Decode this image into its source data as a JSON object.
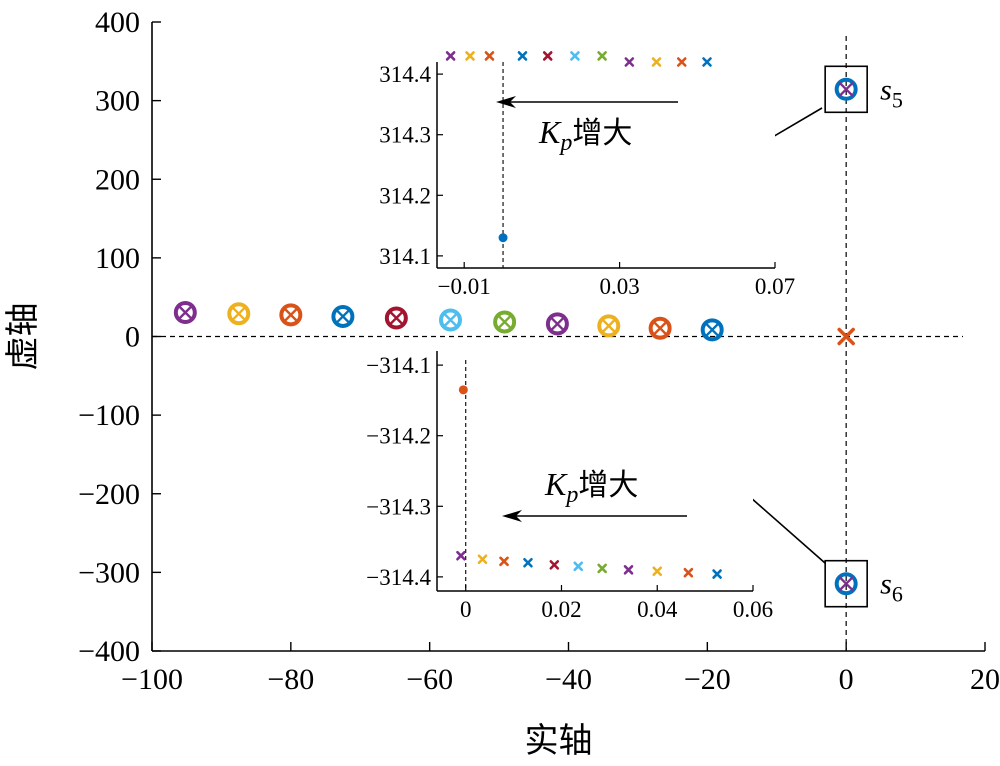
{
  "chart_data": [
    {
      "type": "scatter",
      "xlabel": "实轴",
      "ylabel": "虚轴",
      "xlim": [
        -100,
        20
      ],
      "ylim": [
        -400,
        400
      ],
      "xticks": [
        -100,
        -80,
        -60,
        -40,
        -20,
        0,
        20
      ],
      "xtick_labels": [
        "−100",
        "−80",
        "−60",
        "−40",
        "−20",
        "0",
        "20"
      ],
      "yticks": [
        -400,
        -300,
        -200,
        -100,
        0,
        100,
        200,
        300,
        400
      ],
      "ytick_labels": [
        "−400",
        "−300",
        "−200",
        "−100",
        "0",
        "100",
        "200",
        "300",
        "400"
      ],
      "reference_lines": {
        "x": 0,
        "y": 0
      },
      "points": [
        {
          "x": -95.2,
          "y": 30.5,
          "color": "#7e2f8e",
          "marker": "circle-cross"
        },
        {
          "x": -87.5,
          "y": 29.0,
          "color": "#edb120",
          "marker": "circle-cross"
        },
        {
          "x": -80.0,
          "y": 27.5,
          "color": "#d95319",
          "marker": "circle-cross"
        },
        {
          "x": -72.5,
          "y": 25.5,
          "color": "#0072bd",
          "marker": "circle-cross"
        },
        {
          "x": -64.8,
          "y": 23.5,
          "color": "#a2142f",
          "marker": "circle-cross"
        },
        {
          "x": -57.0,
          "y": 21.0,
          "color": "#4dbeee",
          "marker": "circle-cross"
        },
        {
          "x": -49.2,
          "y": 18.5,
          "color": "#77ac30",
          "marker": "circle-cross"
        },
        {
          "x": -41.6,
          "y": 16.0,
          "color": "#7e2f8e",
          "marker": "circle-cross"
        },
        {
          "x": -34.2,
          "y": 13.5,
          "color": "#edb120",
          "marker": "circle-cross"
        },
        {
          "x": -26.8,
          "y": 10.5,
          "color": "#d95319",
          "marker": "circle-cross"
        },
        {
          "x": -19.3,
          "y": 8.5,
          "color": "#0072bd",
          "marker": "circle-cross"
        },
        {
          "x": 0.0,
          "y": 0.0,
          "color": "#d95319",
          "marker": "x"
        },
        {
          "x": 0.0,
          "y": 314.4,
          "color": "#0072bd",
          "marker": "circle-cross",
          "cross_color": "#7e2f8e"
        },
        {
          "x": 0.0,
          "y": -314.4,
          "color": "#0072bd",
          "marker": "circle-cross",
          "cross_color": "#7e2f8e"
        }
      ],
      "annotations": [
        {
          "label_main": "s",
          "label_sub": "5",
          "target": "upper-pole"
        },
        {
          "label_main": "s",
          "label_sub": "6",
          "target": "lower-pole"
        }
      ]
    },
    {
      "type": "scatter",
      "role": "inset-upper",
      "xlim": [
        -0.017,
        0.07
      ],
      "ylim": [
        314.08,
        314.42
      ],
      "xticks": [
        -0.01,
        0.03,
        0.07
      ],
      "xtick_labels": [
        "−0.01",
        "0.03",
        "0.07"
      ],
      "yticks": [
        314.1,
        314.2,
        314.3,
        314.4
      ],
      "ytick_labels": [
        "314.1",
        "314.2",
        "314.3",
        "314.4"
      ],
      "reference_x": 0.0,
      "points": [
        {
          "x": -0.0135,
          "y": 314.43,
          "color": "#7e2f8e",
          "marker": "x"
        },
        {
          "x": -0.0085,
          "y": 314.43,
          "color": "#edb120",
          "marker": "x"
        },
        {
          "x": -0.0035,
          "y": 314.43,
          "color": "#d95319",
          "marker": "x"
        },
        {
          "x": 0.005,
          "y": 314.43,
          "color": "#0072bd",
          "marker": "x"
        },
        {
          "x": 0.0115,
          "y": 314.43,
          "color": "#a2142f",
          "marker": "x"
        },
        {
          "x": 0.0185,
          "y": 314.43,
          "color": "#4dbeee",
          "marker": "x"
        },
        {
          "x": 0.0255,
          "y": 314.43,
          "color": "#77ac30",
          "marker": "x"
        },
        {
          "x": 0.0325,
          "y": 314.42,
          "color": "#7e2f8e",
          "marker": "x"
        },
        {
          "x": 0.0395,
          "y": 314.42,
          "color": "#edb120",
          "marker": "x"
        },
        {
          "x": 0.046,
          "y": 314.42,
          "color": "#d95319",
          "marker": "x"
        },
        {
          "x": 0.0525,
          "y": 314.42,
          "color": "#0072bd",
          "marker": "x"
        },
        {
          "x": 0.0,
          "y": 314.13,
          "color": "#0072bd",
          "marker": "dot"
        }
      ],
      "arrow_label_main": "K",
      "arrow_label_sub": "p",
      "arrow_label_rest": "增大"
    },
    {
      "type": "scatter",
      "role": "inset-lower",
      "xlim": [
        -0.006,
        0.06
      ],
      "ylim": [
        -314.42,
        -314.08
      ],
      "xticks": [
        0,
        0.02,
        0.04,
        0.06
      ],
      "xtick_labels": [
        "0",
        "0.02",
        "0.04",
        "0.06"
      ],
      "yticks": [
        -314.4,
        -314.3,
        -314.2,
        -314.1
      ],
      "ytick_labels": [
        "−314.4",
        "−314.3",
        "−314.2",
        "−314.1"
      ],
      "reference_x": 0.0,
      "points": [
        {
          "x": -0.001,
          "y": -314.37,
          "color": "#7e2f8e",
          "marker": "x"
        },
        {
          "x": 0.0035,
          "y": -314.375,
          "color": "#edb120",
          "marker": "x"
        },
        {
          "x": 0.008,
          "y": -314.378,
          "color": "#d95319",
          "marker": "x"
        },
        {
          "x": 0.013,
          "y": -314.38,
          "color": "#0072bd",
          "marker": "x"
        },
        {
          "x": 0.0185,
          "y": -314.383,
          "color": "#a2142f",
          "marker": "x"
        },
        {
          "x": 0.0235,
          "y": -314.385,
          "color": "#4dbeee",
          "marker": "x"
        },
        {
          "x": 0.0285,
          "y": -314.388,
          "color": "#77ac30",
          "marker": "x"
        },
        {
          "x": 0.034,
          "y": -314.39,
          "color": "#7e2f8e",
          "marker": "x"
        },
        {
          "x": 0.04,
          "y": -314.392,
          "color": "#edb120",
          "marker": "x"
        },
        {
          "x": 0.0465,
          "y": -314.394,
          "color": "#d95319",
          "marker": "x"
        },
        {
          "x": 0.0525,
          "y": -314.396,
          "color": "#0072bd",
          "marker": "x"
        },
        {
          "x": -0.0005,
          "y": -314.135,
          "color": "#d95319",
          "marker": "dot"
        }
      ],
      "arrow_label_main": "K",
      "arrow_label_sub": "p",
      "arrow_label_rest": "增大"
    }
  ]
}
